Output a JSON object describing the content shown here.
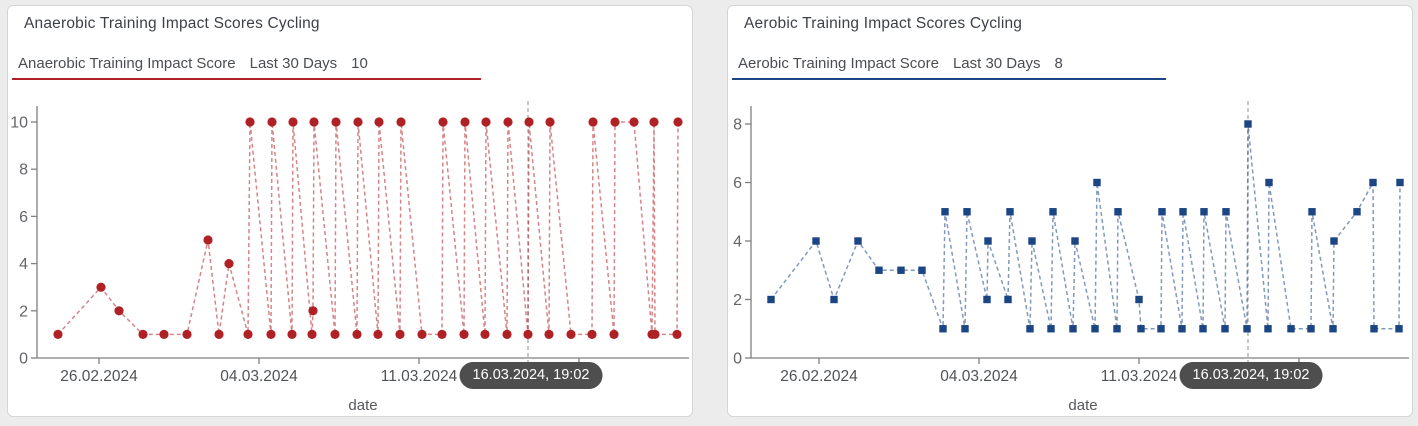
{
  "chart_data": [
    {
      "type": "line",
      "title": "Anaerobic Training Impact Scores Cycling",
      "legend": {
        "series": "Anaerobic Training Impact Score",
        "range": "Last 30 Days",
        "max_value": "10"
      },
      "xlabel": "date",
      "x_tick_labels": [
        "26.02.2024",
        "04.03.2024",
        "11.03.2024"
      ],
      "cursor_label": "16.03.2024, 19:02",
      "y_ticks": [
        0,
        2,
        4,
        6,
        8,
        10
      ],
      "ylim": [
        0,
        10
      ],
      "color": "#b02126",
      "marker": "circle",
      "line_style": "dashed",
      "points": [
        {
          "x": 50,
          "y": 1
        },
        {
          "x": 93,
          "y": 3
        },
        {
          "x": 111,
          "y": 2
        },
        {
          "x": 135,
          "y": 1
        },
        {
          "x": 156,
          "y": 1
        },
        {
          "x": 179,
          "y": 1
        },
        {
          "x": 200,
          "y": 5
        },
        {
          "x": 211,
          "y": 1
        },
        {
          "x": 221,
          "y": 4
        },
        {
          "x": 240,
          "y": 1
        },
        {
          "x": 242,
          "y": 10
        },
        {
          "x": 263,
          "y": 1
        },
        {
          "x": 264,
          "y": 10
        },
        {
          "x": 284,
          "y": 1
        },
        {
          "x": 285,
          "y": 10
        },
        {
          "x": 304,
          "y": 1
        },
        {
          "x": 305,
          "y": 2
        },
        {
          "x": 306,
          "y": 10
        },
        {
          "x": 327,
          "y": 1
        },
        {
          "x": 328,
          "y": 10
        },
        {
          "x": 349,
          "y": 1
        },
        {
          "x": 350,
          "y": 10
        },
        {
          "x": 370,
          "y": 1
        },
        {
          "x": 371,
          "y": 10
        },
        {
          "x": 392,
          "y": 1
        },
        {
          "x": 393,
          "y": 10
        },
        {
          "x": 414,
          "y": 1
        },
        {
          "x": 434,
          "y": 1
        },
        {
          "x": 435,
          "y": 10
        },
        {
          "x": 456,
          "y": 1
        },
        {
          "x": 457,
          "y": 10
        },
        {
          "x": 477,
          "y": 1
        },
        {
          "x": 478,
          "y": 10
        },
        {
          "x": 499,
          "y": 1
        },
        {
          "x": 500,
          "y": 10
        },
        {
          "x": 520,
          "y": 1
        },
        {
          "x": 521,
          "y": 10
        },
        {
          "x": 541,
          "y": 1
        },
        {
          "x": 542,
          "y": 10
        },
        {
          "x": 563,
          "y": 1
        },
        {
          "x": 584,
          "y": 1
        },
        {
          "x": 585,
          "y": 10
        },
        {
          "x": 606,
          "y": 1
        },
        {
          "x": 607,
          "y": 10
        },
        {
          "x": 626,
          "y": 10
        },
        {
          "x": 644,
          "y": 1
        },
        {
          "x": 646,
          "y": 10
        },
        {
          "x": 647,
          "y": 1
        },
        {
          "x": 669,
          "y": 1
        },
        {
          "x": 670,
          "y": 10
        }
      ]
    },
    {
      "type": "line",
      "title": "Aerobic Training Impact Scores Cycling",
      "legend": {
        "series": "Aerobic Training Impact Score",
        "range": "Last 30 Days",
        "max_value": "8"
      },
      "xlabel": "date",
      "x_tick_labels": [
        "26.02.2024",
        "04.03.2024",
        "11.03.2024"
      ],
      "cursor_label": "16.03.2024, 19:02",
      "y_ticks": [
        0,
        2,
        4,
        6,
        8
      ],
      "ylim": [
        0,
        8
      ],
      "color": "#1b4583",
      "marker": "square",
      "line_style": "dashed",
      "points": [
        {
          "x": 43,
          "y": 2
        },
        {
          "x": 88,
          "y": 4
        },
        {
          "x": 106,
          "y": 2
        },
        {
          "x": 130,
          "y": 4
        },
        {
          "x": 151,
          "y": 3
        },
        {
          "x": 173,
          "y": 3
        },
        {
          "x": 194,
          "y": 3
        },
        {
          "x": 215,
          "y": 1
        },
        {
          "x": 217,
          "y": 5
        },
        {
          "x": 237,
          "y": 1
        },
        {
          "x": 239,
          "y": 5
        },
        {
          "x": 259,
          "y": 2
        },
        {
          "x": 260,
          "y": 4
        },
        {
          "x": 280,
          "y": 2
        },
        {
          "x": 282,
          "y": 5
        },
        {
          "x": 302,
          "y": 1
        },
        {
          "x": 304,
          "y": 4
        },
        {
          "x": 323,
          "y": 1
        },
        {
          "x": 325,
          "y": 5
        },
        {
          "x": 345,
          "y": 1
        },
        {
          "x": 347,
          "y": 4
        },
        {
          "x": 367,
          "y": 1
        },
        {
          "x": 369,
          "y": 6
        },
        {
          "x": 389,
          "y": 1
        },
        {
          "x": 390,
          "y": 5
        },
        {
          "x": 411,
          "y": 2
        },
        {
          "x": 413,
          "y": 1
        },
        {
          "x": 433,
          "y": 1
        },
        {
          "x": 434,
          "y": 5
        },
        {
          "x": 454,
          "y": 1
        },
        {
          "x": 455,
          "y": 5
        },
        {
          "x": 475,
          "y": 1
        },
        {
          "x": 476,
          "y": 5
        },
        {
          "x": 497,
          "y": 1
        },
        {
          "x": 498,
          "y": 5
        },
        {
          "x": 519,
          "y": 1
        },
        {
          "x": 520,
          "y": 8
        },
        {
          "x": 540,
          "y": 1
        },
        {
          "x": 541,
          "y": 6
        },
        {
          "x": 563,
          "y": 1
        },
        {
          "x": 583,
          "y": 1
        },
        {
          "x": 584,
          "y": 5
        },
        {
          "x": 605,
          "y": 1
        },
        {
          "x": 606,
          "y": 4
        },
        {
          "x": 629,
          "y": 5
        },
        {
          "x": 645,
          "y": 6
        },
        {
          "x": 646,
          "y": 1
        },
        {
          "x": 671,
          "y": 1
        },
        {
          "x": 672,
          "y": 6
        }
      ]
    }
  ],
  "colors": {
    "anaerobic_accent": "#b02126",
    "aerobic_accent": "#1b4583",
    "badge_background": "#4e4e4e",
    "badge_text": "#ffffff",
    "axis": "#808080",
    "cursor_line": "#adadad"
  }
}
